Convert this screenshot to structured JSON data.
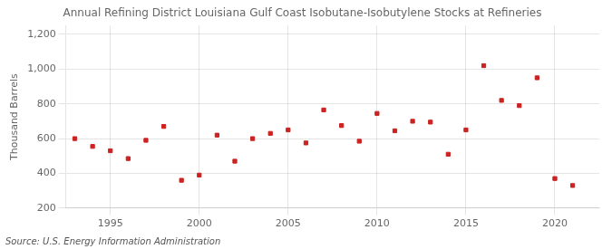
{
  "chart_data": {
    "type": "scatter",
    "title": "Annual Refining District Louisiana Gulf Coast Isobutane-Isobutylene Stocks at Refineries",
    "ylabel": "Thousand Barrels",
    "source": "Source: U.S. Energy Information Administration",
    "x": [
      1993,
      1994,
      1995,
      1996,
      1997,
      1998,
      1999,
      2000,
      2001,
      2002,
      2003,
      2004,
      2005,
      2006,
      2007,
      2008,
      2009,
      2010,
      2011,
      2012,
      2013,
      2014,
      2015,
      2016,
      2017,
      2018,
      2019,
      2020,
      2021
    ],
    "values": [
      600,
      555,
      530,
      485,
      590,
      670,
      360,
      390,
      620,
      470,
      600,
      630,
      650,
      575,
      765,
      675,
      585,
      745,
      645,
      700,
      695,
      510,
      650,
      1020,
      820,
      790,
      950,
      370,
      330
    ],
    "color": "#cc2222",
    "marker": "square",
    "xlim": [
      1992.5,
      2022.5
    ],
    "xticks": [
      1995,
      2000,
      2005,
      2010,
      2015,
      2020
    ],
    "ylim": [
      200,
      1250
    ],
    "yticks": [
      200,
      400,
      600,
      800,
      {
        "value": 1000,
        "label": "1,000"
      },
      {
        "value": 1200,
        "label": "1,200"
      }
    ],
    "grid": true
  }
}
